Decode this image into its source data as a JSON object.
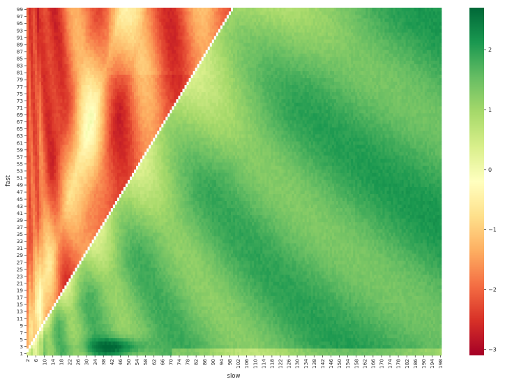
{
  "chart_data": {
    "type": "heatmap",
    "title": "",
    "xlabel": "slow",
    "ylabel": "fast",
    "x_range": [
      2,
      198
    ],
    "y_range": [
      1,
      99
    ],
    "x_tick_labels": [
      "2",
      "6",
      "10",
      "14",
      "18",
      "22",
      "26",
      "30",
      "34",
      "38",
      "42",
      "46",
      "50",
      "54",
      "58",
      "62",
      "66",
      "70",
      "74",
      "78",
      "82",
      "86",
      "90",
      "94",
      "98",
      "102",
      "106",
      "110",
      "114",
      "118",
      "122",
      "126",
      "130",
      "134",
      "138",
      "142",
      "146",
      "150",
      "154",
      "158",
      "162",
      "166",
      "170",
      "174",
      "178",
      "182",
      "186",
      "190",
      "194",
      "198"
    ],
    "y_tick_labels": [
      "1",
      "3",
      "5",
      "7",
      "9",
      "11",
      "13",
      "15",
      "17",
      "19",
      "21",
      "23",
      "25",
      "27",
      "29",
      "31",
      "33",
      "35",
      "37",
      "39",
      "41",
      "43",
      "45",
      "47",
      "49",
      "51",
      "53",
      "55",
      "57",
      "59",
      "61",
      "63",
      "65",
      "67",
      "69",
      "71",
      "73",
      "75",
      "77",
      "79",
      "81",
      "83",
      "85",
      "87",
      "89",
      "91",
      "93",
      "95",
      "97",
      "99"
    ],
    "colorbar": {
      "colormap": "RdYlGn",
      "min": -3.1,
      "max": 2.7,
      "ticks": [
        "2",
        "1",
        "0",
        "−1",
        "−2",
        "−3"
      ]
    },
    "regions": {
      "fast_greater_than_slow": "mostly negative (red/orange), most negative near small slow values",
      "diagonal": "white (masked)",
      "fast_less_than_slow": "mostly positive (green), strongest near fast 1-5, slow 30-55"
    },
    "colors": {
      "high": "#006837",
      "mid": "#ffffbf",
      "low": "#a50026",
      "masked": "#ffffff"
    }
  }
}
